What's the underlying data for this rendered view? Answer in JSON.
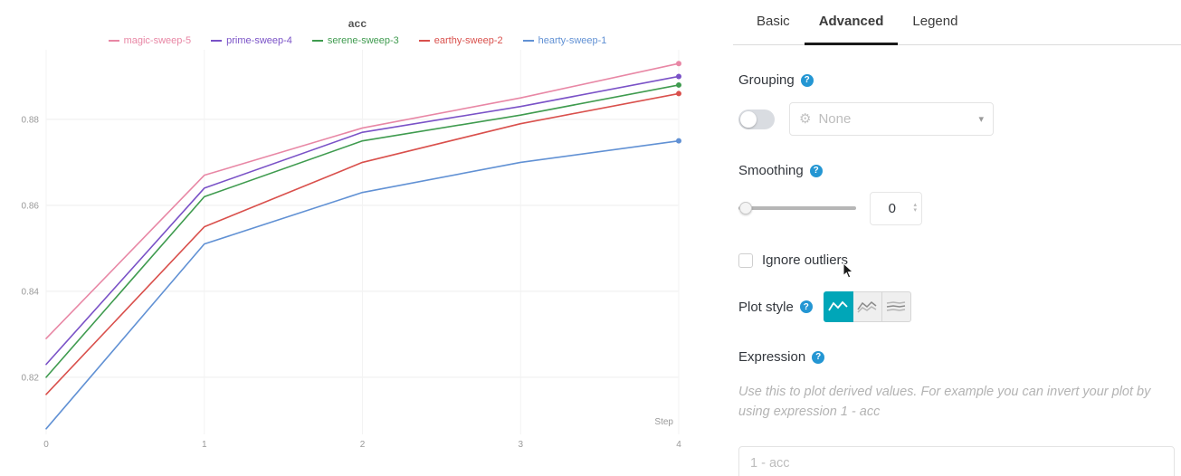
{
  "chart": {
    "title": "acc",
    "x_axis_label": "Step",
    "chart_data": {
      "type": "line",
      "x": [
        0,
        1,
        2,
        3,
        4
      ],
      "series": [
        {
          "name": "magic-sweep-5",
          "color": "#e887a5",
          "values": [
            0.829,
            0.867,
            0.878,
            0.885,
            0.893
          ]
        },
        {
          "name": "prime-sweep-4",
          "color": "#7a52c7",
          "values": [
            0.823,
            0.864,
            0.877,
            0.883,
            0.89
          ]
        },
        {
          "name": "serene-sweep-3",
          "color": "#3f9b4f",
          "values": [
            0.82,
            0.862,
            0.875,
            0.881,
            0.888
          ]
        },
        {
          "name": "earthy-sweep-2",
          "color": "#d9504c",
          "values": [
            0.816,
            0.855,
            0.87,
            0.879,
            0.886
          ]
        },
        {
          "name": "hearty-sweep-1",
          "color": "#6191d4",
          "values": [
            0.808,
            0.851,
            0.863,
            0.87,
            0.875
          ]
        }
      ],
      "ylim": [
        0.8067,
        0.8962
      ],
      "yticks": [
        0.82,
        0.84,
        0.86,
        0.88
      ],
      "xticks": [
        0,
        1,
        2,
        3,
        4
      ],
      "grid": true,
      "legend_position": "top"
    }
  },
  "panel": {
    "tabs": [
      {
        "label": "Basic",
        "active": false
      },
      {
        "label": "Advanced",
        "active": true
      },
      {
        "label": "Legend",
        "active": false
      }
    ],
    "grouping": {
      "label": "Grouping",
      "toggle_on": false,
      "dropdown_value": "None"
    },
    "smoothing": {
      "label": "Smoothing",
      "value": "0"
    },
    "ignore_outliers": {
      "label": "Ignore outliers",
      "checked": false
    },
    "plot_style": {
      "label": "Plot style",
      "selected_index": 0
    },
    "expression": {
      "label": "Expression",
      "help_text": "Use this to plot derived values. For example you can invert your plot by using expression 1 - acc",
      "placeholder": "1 - acc"
    }
  },
  "colors": {
    "accent_teal": "#00a6b8",
    "help_icon_blue": "#2496d3"
  }
}
